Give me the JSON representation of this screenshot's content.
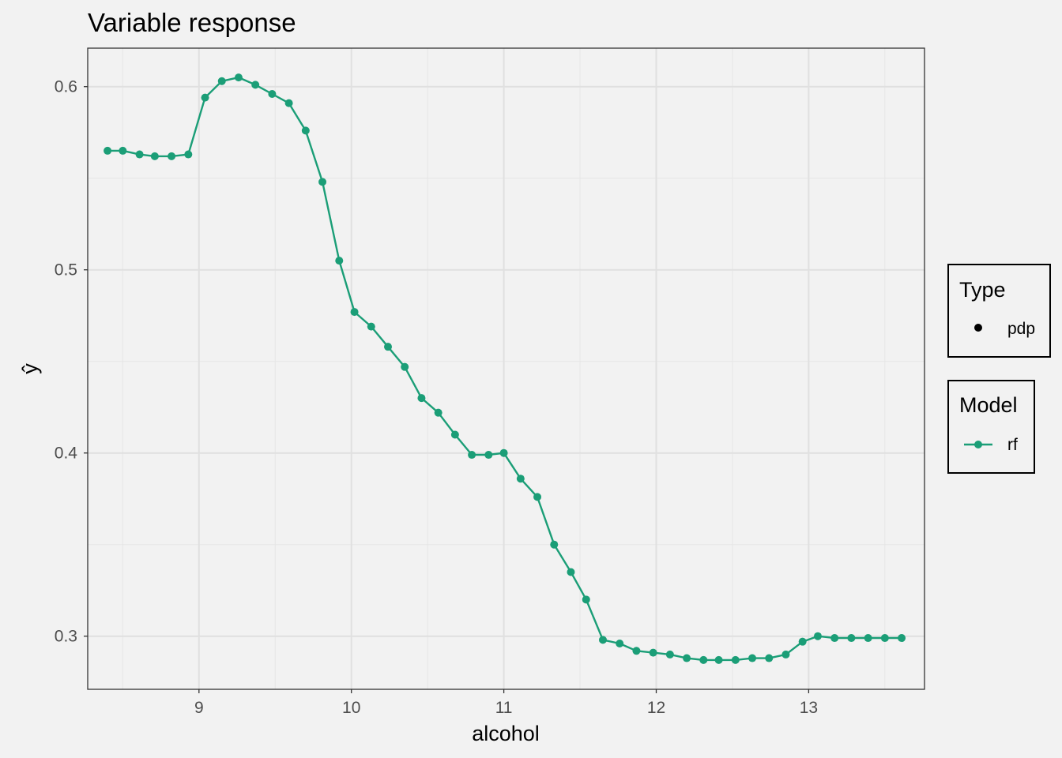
{
  "chart_data": {
    "type": "line",
    "title": "Variable response",
    "xlabel": "alcohol",
    "ylabel": "ŷ",
    "xlim": [
      8.27,
      13.76
    ],
    "ylim": [
      0.271,
      0.621
    ],
    "x_ticks": [
      9,
      10,
      11,
      12,
      13
    ],
    "x_tick_labels": [
      "9",
      "10",
      "11",
      "12",
      "13"
    ],
    "y_ticks": [
      0.3,
      0.4,
      0.5,
      0.6
    ],
    "y_tick_labels": [
      "0.3",
      "0.4",
      "0.5",
      "0.6"
    ],
    "grid": true,
    "legend_position": "right",
    "legends": [
      {
        "title": "Type",
        "entries": [
          {
            "label": "pdp",
            "symbol": "point",
            "color": "#000000"
          }
        ]
      },
      {
        "title": "Model",
        "entries": [
          {
            "label": "rf",
            "symbol": "line-point",
            "color": "#1b9e77"
          }
        ]
      }
    ],
    "series": [
      {
        "name": "rf",
        "color": "#1b9e77",
        "x": [
          8.4,
          8.5,
          8.61,
          8.71,
          8.82,
          8.93,
          9.04,
          9.15,
          9.26,
          9.37,
          9.48,
          9.59,
          9.7,
          9.81,
          9.92,
          10.02,
          10.13,
          10.24,
          10.35,
          10.46,
          10.57,
          10.68,
          10.79,
          10.9,
          11.0,
          11.11,
          11.22,
          11.33,
          11.44,
          11.54,
          11.65,
          11.76,
          11.87,
          11.98,
          12.09,
          12.2,
          12.31,
          12.41,
          12.52,
          12.63,
          12.74,
          12.85,
          12.96,
          13.06,
          13.17,
          13.28,
          13.39,
          13.5,
          13.61
        ],
        "y": [
          0.565,
          0.565,
          0.563,
          0.562,
          0.562,
          0.563,
          0.594,
          0.603,
          0.605,
          0.601,
          0.596,
          0.591,
          0.576,
          0.548,
          0.505,
          0.477,
          0.469,
          0.458,
          0.447,
          0.43,
          0.422,
          0.41,
          0.399,
          0.399,
          0.4,
          0.386,
          0.376,
          0.35,
          0.335,
          0.32,
          0.298,
          0.296,
          0.292,
          0.291,
          0.29,
          0.288,
          0.287,
          0.287,
          0.287,
          0.288,
          0.288,
          0.29,
          0.297,
          0.3,
          0.299,
          0.299,
          0.299,
          0.299,
          0.299
        ]
      }
    ]
  }
}
